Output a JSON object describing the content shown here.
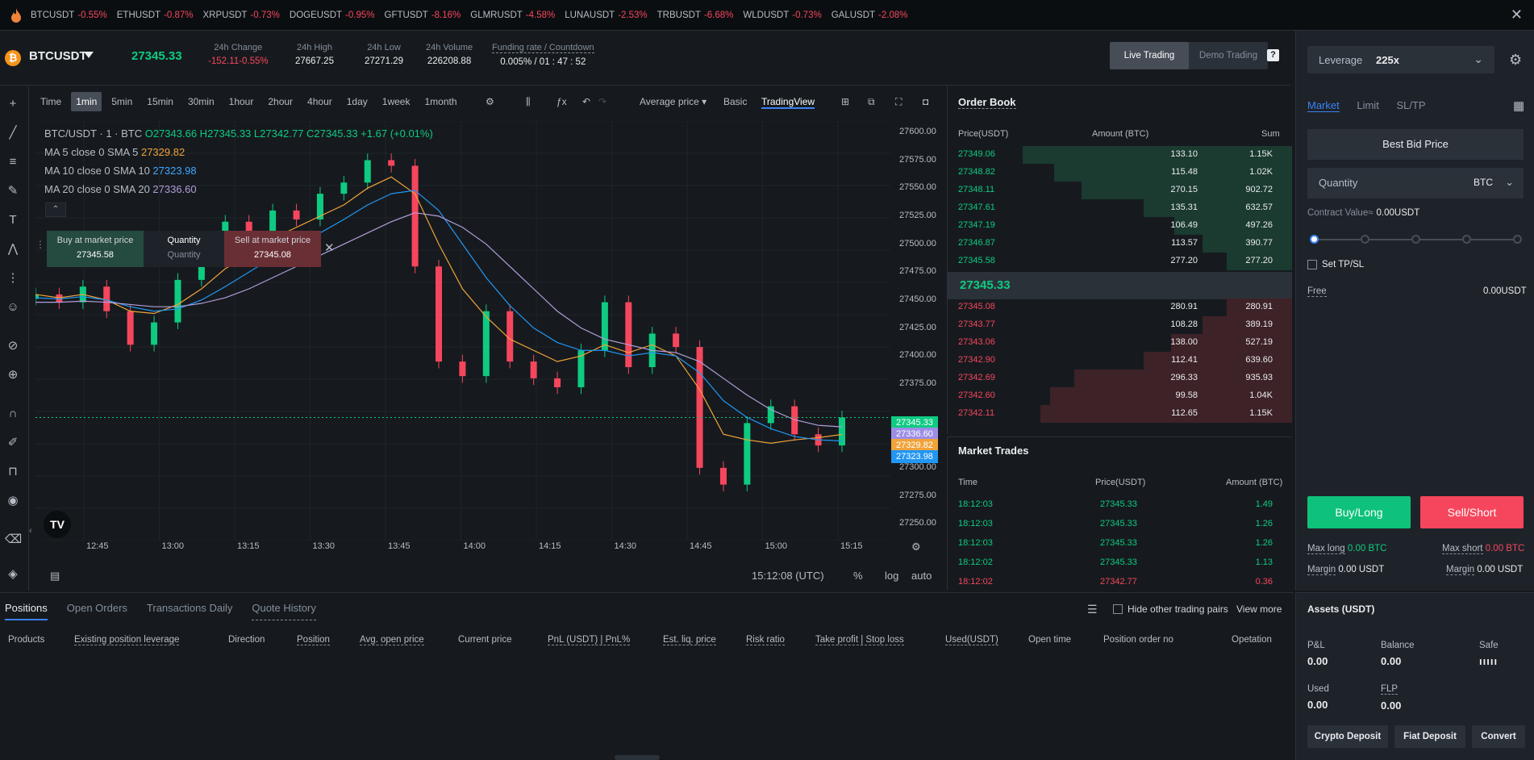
{
  "ticker": [
    {
      "symbol": "BTCUSDT",
      "change": "-0.55%"
    },
    {
      "symbol": "ETHUSDT",
      "change": "-0.87%"
    },
    {
      "symbol": "XRPUSDT",
      "change": "-0.73%"
    },
    {
      "symbol": "DOGEUSDT",
      "change": "-0.95%"
    },
    {
      "symbol": "GFTUSDT",
      "change": "-8.16%"
    },
    {
      "symbol": "GLMRUSDT",
      "change": "-4.58%"
    },
    {
      "symbol": "LUNAUSDT",
      "change": "-2.53%"
    },
    {
      "symbol": "TRBUSDT",
      "change": "-6.68%"
    },
    {
      "symbol": "WLDUSDT",
      "change": "-0.73%"
    },
    {
      "symbol": "GALUSDT",
      "change": "-2.08%"
    }
  ],
  "header": {
    "pair": "BTCUSDT",
    "last_price": "27345.33",
    "change_label": "24h Change",
    "change_value": "-152.11-0.55%",
    "high_label": "24h High",
    "high_value": "27667.25",
    "low_label": "24h Low",
    "low_value": "27271.29",
    "volume_label": "24h Volume",
    "volume_value": "226208.88",
    "funding_label": "Funding rate / Countdown",
    "funding_value": "0.005% / 01 : 47 : 52",
    "live_trading": "Live Trading",
    "demo_trading": "Demo Trading"
  },
  "chart": {
    "timeframes": [
      "Time",
      "1min",
      "5min",
      "15min",
      "30min",
      "1hour",
      "2hour",
      "4hour",
      "1day",
      "1week",
      "1month"
    ],
    "active_timeframe": "1min",
    "price_mode": "Average price",
    "view_basic": "Basic",
    "view_tradingview": "TradingView",
    "legend_symbol": "BTC/USDT · 1 · BTC",
    "legend_ohlc": "O27343.66 H27345.33 L27342.77 C27345.33 +1.67 (+0.01%)",
    "ma5_label": "MA 5 close 0 SMA 5",
    "ma5_value": "27329.82",
    "ma10_label": "MA 10 close 0 SMA 10",
    "ma10_value": "27323.98",
    "ma20_label": "MA 20 close 0 SMA 20",
    "ma20_value": "27336.60",
    "buy_market_label": "Buy at market price",
    "buy_market_price": "27345.58",
    "quantity_label": "Quantity",
    "quantity_placeholder": "Quantity",
    "sell_market_label": "Sell at market price",
    "sell_market_price": "27345.08",
    "y_ticks": [
      "27600.00",
      "27575.00",
      "27550.00",
      "27525.00",
      "27500.00",
      "27475.00",
      "27450.00",
      "27425.00",
      "27400.00",
      "27375.00",
      "27300.00",
      "27275.00",
      "27250.00"
    ],
    "x_ticks": [
      "12:45",
      "13:00",
      "13:15",
      "13:30",
      "13:45",
      "14:00",
      "14:15",
      "14:30",
      "14:45",
      "15:00",
      "15:15"
    ],
    "price_tags": [
      {
        "value": "27345.33",
        "color": "#0ecb81"
      },
      {
        "value": "27336.60",
        "color": "#9c8ee6"
      },
      {
        "value": "27329.82",
        "color": "#f0a33a"
      },
      {
        "value": "27323.98",
        "color": "#2196f3"
      }
    ],
    "clock": "15:12:08 (UTC)",
    "pct": "%",
    "log": "log",
    "auto": "auto"
  },
  "chart_data": {
    "type": "line",
    "series": [
      {
        "values": [
          27455,
          27448,
          27462,
          27440,
          27410,
          27430,
          27468,
          27490,
          27520,
          27505,
          27530,
          27522,
          27545,
          27555,
          27575,
          27570,
          27480,
          27395,
          27382,
          27440,
          27395,
          27380,
          27372,
          27405,
          27448,
          27390,
          27420,
          27408,
          27300,
          27285,
          27340,
          27355,
          27330,
          27320,
          27345
        ]
      },
      {
        "name": "MA 5 close 0 SMA 5",
        "values": [
          27455,
          27452,
          27455,
          27450,
          27440,
          27438,
          27446,
          27460,
          27478,
          27490,
          27505,
          27515,
          27525,
          27535,
          27550,
          27560,
          27545,
          27500,
          27460,
          27435,
          27415,
          27405,
          27395,
          27400,
          27410,
          27403,
          27410,
          27400,
          27370,
          27330,
          27325,
          27322,
          27325,
          27327,
          27329.82
        ]
      },
      {
        "name": "MA 10 close 0 SMA 10",
        "values": [
          27452,
          27451,
          27453,
          27450,
          27444,
          27440,
          27442,
          27450,
          27462,
          27475,
          27488,
          27500,
          27510,
          27522,
          27535,
          27545,
          27548,
          27530,
          27500,
          27470,
          27445,
          27425,
          27412,
          27405,
          27405,
          27400,
          27403,
          27400,
          27385,
          27360,
          27345,
          27335,
          27328,
          27325,
          27323.98
        ]
      },
      {
        "name": "MA 20 close 0 SMA 20",
        "values": [
          27448,
          27448,
          27449,
          27448,
          27446,
          27444,
          27444,
          27447,
          27452,
          27460,
          27470,
          27480,
          27490,
          27500,
          27510,
          27520,
          27528,
          27525,
          27515,
          27500,
          27480,
          27460,
          27440,
          27425,
          27415,
          27410,
          27405,
          27403,
          27395,
          27380,
          27365,
          27352,
          27343,
          27338,
          27336.6
        ]
      }
    ],
    "x": [
      "12:40",
      "12:45",
      "12:50",
      "12:55",
      "13:00",
      "13:05",
      "13:10",
      "13:15",
      "13:20",
      "13:25",
      "13:30",
      "13:35",
      "13:40",
      "13:45",
      "13:50",
      "13:55",
      "14:00",
      "14:05",
      "14:10",
      "14:15",
      "14:20",
      "14:25",
      "14:30",
      "14:35",
      "14:40",
      "14:45",
      "14:50",
      "14:55",
      "15:00",
      "15:02",
      "15:05",
      "15:07",
      "15:09",
      "15:11",
      "15:12"
    ],
    "ylim": [
      27235,
      27610
    ],
    "grid": true,
    "legend": "top-left"
  },
  "order_book": {
    "title": "Order Book",
    "col_price": "Price(USDT)",
    "col_amount": "Amount (BTC)",
    "col_sum": "Sum",
    "bids_top": [
      {
        "price": "27349.06",
        "amount": "133.10",
        "sum": "1.15K",
        "depth": 0.78
      },
      {
        "price": "27348.82",
        "amount": "115.48",
        "sum": "1.02K",
        "depth": 0.69
      },
      {
        "price": "27348.11",
        "amount": "270.15",
        "sum": "902.72",
        "depth": 0.61
      },
      {
        "price": "27347.61",
        "amount": "135.31",
        "sum": "632.57",
        "depth": 0.43
      },
      {
        "price": "27347.19",
        "amount": "106.49",
        "sum": "497.26",
        "depth": 0.34
      },
      {
        "price": "27346.87",
        "amount": "113.57",
        "sum": "390.77",
        "depth": 0.26
      },
      {
        "price": "27345.58",
        "amount": "277.20",
        "sum": "277.20",
        "depth": 0.19
      }
    ],
    "mid_price": "27345.33",
    "asks_bottom": [
      {
        "price": "27345.08",
        "amount": "280.91",
        "sum": "280.91",
        "depth": 0.19
      },
      {
        "price": "27343.77",
        "amount": "108.28",
        "sum": "389.19",
        "depth": 0.26
      },
      {
        "price": "27343.06",
        "amount": "138.00",
        "sum": "527.19",
        "depth": 0.35
      },
      {
        "price": "27342.90",
        "amount": "112.41",
        "sum": "639.60",
        "depth": 0.43
      },
      {
        "price": "27342.69",
        "amount": "296.33",
        "sum": "935.93",
        "depth": 0.63
      },
      {
        "price": "27342.60",
        "amount": "99.58",
        "sum": "1.04K",
        "depth": 0.7
      },
      {
        "price": "27342.11",
        "amount": "112.65",
        "sum": "1.15K",
        "depth": 0.73
      }
    ]
  },
  "market_trades": {
    "title": "Market Trades",
    "col_time": "Time",
    "col_price": "Price(USDT)",
    "col_amount": "Amount (BTC)",
    "rows": [
      {
        "time": "18:12:03",
        "price": "27345.33",
        "amount": "1.49",
        "side": "buy"
      },
      {
        "time": "18:12:03",
        "price": "27345.33",
        "amount": "1.26",
        "side": "buy"
      },
      {
        "time": "18:12:03",
        "price": "27345.33",
        "amount": "1.26",
        "side": "buy"
      },
      {
        "time": "18:12:02",
        "price": "27345.33",
        "amount": "1.13",
        "side": "buy"
      },
      {
        "time": "18:12:02",
        "price": "27342.77",
        "amount": "0.36",
        "side": "sell"
      }
    ]
  },
  "order_panel": {
    "leverage_label": "Leverage",
    "leverage_value": "225x",
    "tab_market": "Market",
    "tab_limit": "Limit",
    "tab_sltp": "SL/TP",
    "best_bid": "Best Bid Price",
    "quantity_label": "Quantity",
    "quantity_unit": "BTC",
    "contract_value_label": "Contract Value≈",
    "contract_value": "0.00USDT",
    "slider_value": 0,
    "set_tpsl": "Set TP/SL",
    "free_label": "Free",
    "free_value": "0.00USDT",
    "buy_label": "Buy/Long",
    "sell_label": "Sell/Short",
    "max_long_label": "Max long",
    "max_long_value": "0.00 BTC",
    "max_short_label": "Max short",
    "max_short_value": "0.00 BTC",
    "margin_label": "Margin",
    "margin_long_value": "0.00 USDT",
    "margin_short_value": "0.00 USDT"
  },
  "bottom": {
    "tabs": [
      "Positions",
      "Open Orders",
      "Transactions Daily",
      "Quote History"
    ],
    "hide_pairs": "Hide other trading pairs",
    "view_more": "View more",
    "columns": [
      "Products",
      "Existing position leverage",
      "Direction",
      "Position",
      "Avg. open price",
      "Current price",
      "PnL (USDT) | PnL%",
      "Est. liq. price",
      "Risk ratio",
      "Take profit | Stop loss",
      "Used(USDT)",
      "Open time",
      "Position order no",
      "Opetation"
    ]
  },
  "assets": {
    "title": "Assets (USDT)",
    "pnl_label": "P&L",
    "pnl_value": "0.00",
    "balance_label": "Balance",
    "balance_value": "0.00",
    "safe_label": "Safe",
    "used_label": "Used",
    "used_value": "0.00",
    "flp_label": "FLP",
    "flp_value": "0.00",
    "crypto_deposit": "Crypto Deposit",
    "fiat_deposit": "Fiat Deposit",
    "convert": "Convert"
  },
  "colors": {
    "up": "#0ecb81",
    "down": "#f6465d",
    "accent": "#3b82f6",
    "ma5": "#f0a33a",
    "ma10": "#2196f3",
    "ma20": "#b39ddb"
  }
}
